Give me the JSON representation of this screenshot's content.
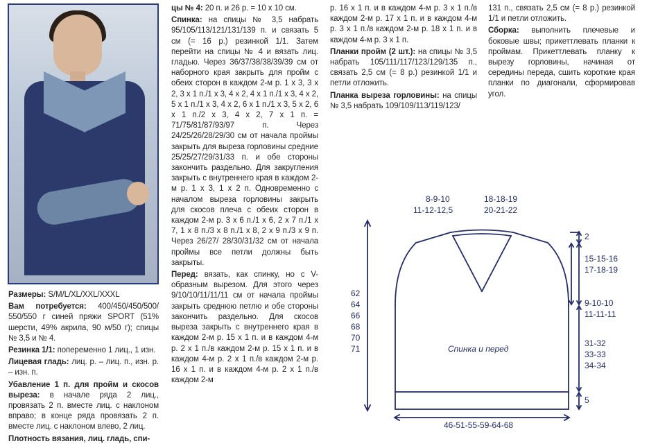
{
  "photo": {
    "caption": "model photo"
  },
  "col1": [
    {
      "b": "Размеры:",
      "t": " S/M/L/XL/XXL/XXXL"
    },
    {
      "b": "Вам потребуется:",
      "t": " 400/450/450/500/ 550/550 г синей пряжи SPORT (51% шерсти, 49% акрила, 90 м/50 г); спицы № 3,5 и № 4."
    },
    {
      "b": "Резинка 1/1:",
      "t": " попеременно 1 лиц., 1 изн."
    },
    {
      "b": "Лицевая гладь:",
      "t": " лиц. р. – лиц. п., изн. р. – изн. п."
    },
    {
      "b": "Убавление 1 п. для пройм и скосов выреза:",
      "t": " в начале ряда 2 лиц., провязать 2 п. вместе лиц. с наклоном вправо; в конце ряда провязать 2 п. вместе лиц. с наклоном влево, 2 лиц."
    },
    {
      "b": "Плотность вязания, лиц. гладь, спи-",
      "t": ""
    }
  ],
  "col2": [
    {
      "b": "цы № 4:",
      "t": " 20 п. и 26 р. = 10 x 10 см."
    },
    {
      "b": "Спинка:",
      "t": " на спицы № 3,5 набрать 95/105/113/121/131/139 п. и связать 5 см (= 16 р.) резинкой 1/1. Затем перейти на спицы № 4 и вязать лиц. гладью. Через 36/37/38/38/39/39 см от наборного края закрыть для пройм с обеих сторон в каждом 2-м р. 1 x 3, 3 x 2, 3 x 1 п./1 x 3, 4 x 2, 4 x 1 п./1 x 3, 4 x 2, 5 x 1 п./1 x 3, 4 x 2, 6 x 1 п./1 x 3, 5 x 2, 6 x 1 п./2 x 3, 4 x 2, 7 x 1 п. = 71/75/81/87/93/97 п. Через 24/25/26/28/29/30 см от начала проймы закрыть для выреза горловины средние 25/25/27/29/31/33 п. и обе стороны закончить раздельно. Для закругления закрыть с внутреннего края в каждом 2-м р. 1 x 3, 1 x 2 п. Одновременно с началом выреза горловины закрыть для скосов плеча с обеих сторон в каждом 2-м р. 3 x 6 п./1 x 6, 2 x 7 п./1 x 7, 1 x 8 п./3 x 8 п./1 x 8, 2 x 9 п./3 x 9 п. Через 26/27/ 28/30/31/32 см от начала проймы все петли должны быть закрыты."
    },
    {
      "b": "Перед:",
      "t": " вязать, как спинку, но с V-образным вырезом. Для этого через 9/10/10/11/11/11 см от начала проймы закрыть среднюю петлю и обе стороны закончить раздельно. Для скосов выреза закрыть с внутреннего края в каждом 2-м р. 15 x 1 п. и в каждом 4-м р. 2 x 1 п./в каждом 2-м р. 15 x 1 п. и в каждом 4-м р. 2 x 1 п./в каждом 2-м р. 16 x 1 п. и в каждом 4-м р. 2 x 1 п./в каждом 2-м"
    }
  ],
  "col3": [
    {
      "b": "",
      "t": "р. 16 x 1 п. и в каждом 4-м р. 3 x 1 п./в каждом 2-м р. 17 x 1 п. и в каждом 4-м р. 3 x 1 п./в каждом 2-м р. 18 x 1 п. и в каждом 4-м р. 3 x 1 п."
    },
    {
      "b": "Планки пройм (2 шт.):",
      "t": " на спицы № 3,5 набрать 105/111/117/123/129/135 п., связать 2,5 см (= 8 р.) резинкой 1/1 и петли отложить."
    },
    {
      "b": "Планка выреза горловины:",
      "t": " на спицы № 3,5 набрать 109/109/113/119/123/"
    }
  ],
  "col4": [
    {
      "b": "",
      "t": "131 п., связать 2,5 см (= 8 р.) резинкой 1/1 и петли отложить."
    },
    {
      "b": "Сборка:",
      "t": " выполнить плечевые и боковые швы; прикеттлевать планки к проймам. Прикеттлевать планку к вырезу горловины, начиная от середины переда, сшить короткие края планки по диагонали, сформировав угол."
    }
  ],
  "diagram": {
    "type": "schematic",
    "line_color": "#232d6a",
    "line_width": 1.8,
    "label_color": "#232d6a",
    "label_fontsize": 12,
    "top_labels": {
      "shoulder": "8-9-10",
      "neck": "18-18-19",
      "shoulder2": "11-12-12,5",
      "neck2": "20-21-22"
    },
    "left_heights": [
      "62",
      "64",
      "66",
      "68",
      "70",
      "71"
    ],
    "right_side": {
      "r_top": "2",
      "r_a1": "15-15-16",
      "r_a2": "17-18-19",
      "r_b1": "9-10-10",
      "r_b2": "11-11-11",
      "r_c1": "31-32",
      "r_c2": "33-33",
      "r_c3": "34-34",
      "r_hem": "5"
    },
    "center_label": "Спинка и перед",
    "bottom_width": "46-51-55-59-64-68"
  }
}
